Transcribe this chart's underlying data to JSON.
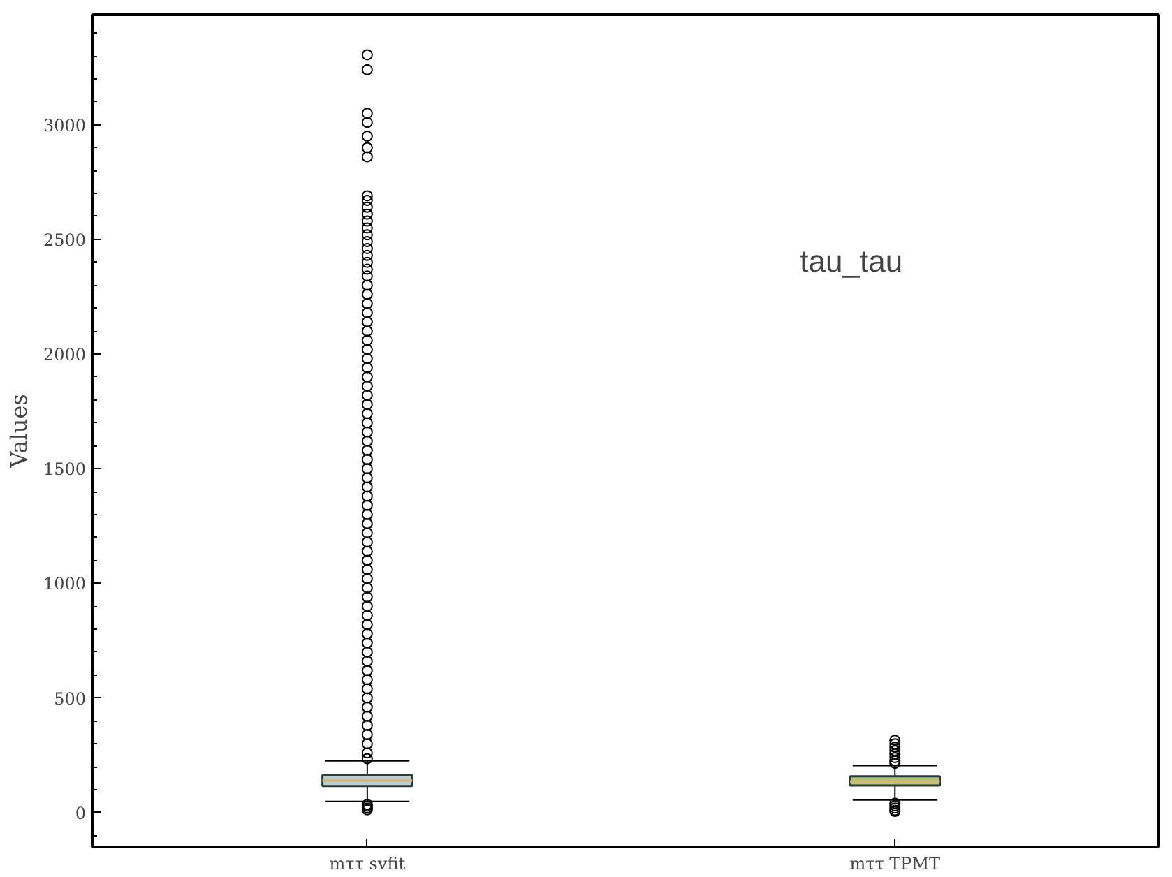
{
  "chart_data": {
    "type": "box",
    "ylabel": "Values",
    "categories": [
      "mττ svfit",
      "mττ TPMT"
    ],
    "colors": [
      "#b9ced0",
      "#a9c66e"
    ],
    "boxes": [
      {
        "low": 49,
        "q1": 116,
        "median": 140,
        "q3": 164,
        "high": 225,
        "outliers": [
          3305,
          3240,
          3050,
          3010,
          2950,
          2900,
          2860,
          2690,
          2670,
          2640,
          2610,
          2580,
          2550,
          2520,
          2490,
          2460,
          2430,
          2400,
          2370,
          2340,
          2300,
          2260,
          2220,
          2180,
          2140,
          2100,
          2060,
          2020,
          1980,
          1940,
          1900,
          1860,
          1820,
          1780,
          1740,
          1700,
          1660,
          1620,
          1580,
          1540,
          1500,
          1460,
          1420,
          1380,
          1340,
          1300,
          1260,
          1220,
          1180,
          1140,
          1100,
          1060,
          1020,
          980,
          940,
          900,
          860,
          820,
          780,
          740,
          700,
          660,
          620,
          580,
          540,
          500,
          460,
          420,
          380,
          340,
          300,
          260,
          235,
          35,
          28,
          20,
          12
        ]
      },
      {
        "low": 55,
        "q1": 118,
        "median": 135,
        "q3": 158,
        "high": 205,
        "outliers": [
          315,
          300,
          285,
          270,
          255,
          240,
          225,
          215,
          40,
          30,
          20,
          10,
          5
        ]
      }
    ],
    "ylim": [
      -150,
      3480
    ],
    "yticks": [
      0,
      500,
      1000,
      1500,
      2000,
      2500,
      3000
    ],
    "annotations": [
      "tau_tau"
    ]
  }
}
